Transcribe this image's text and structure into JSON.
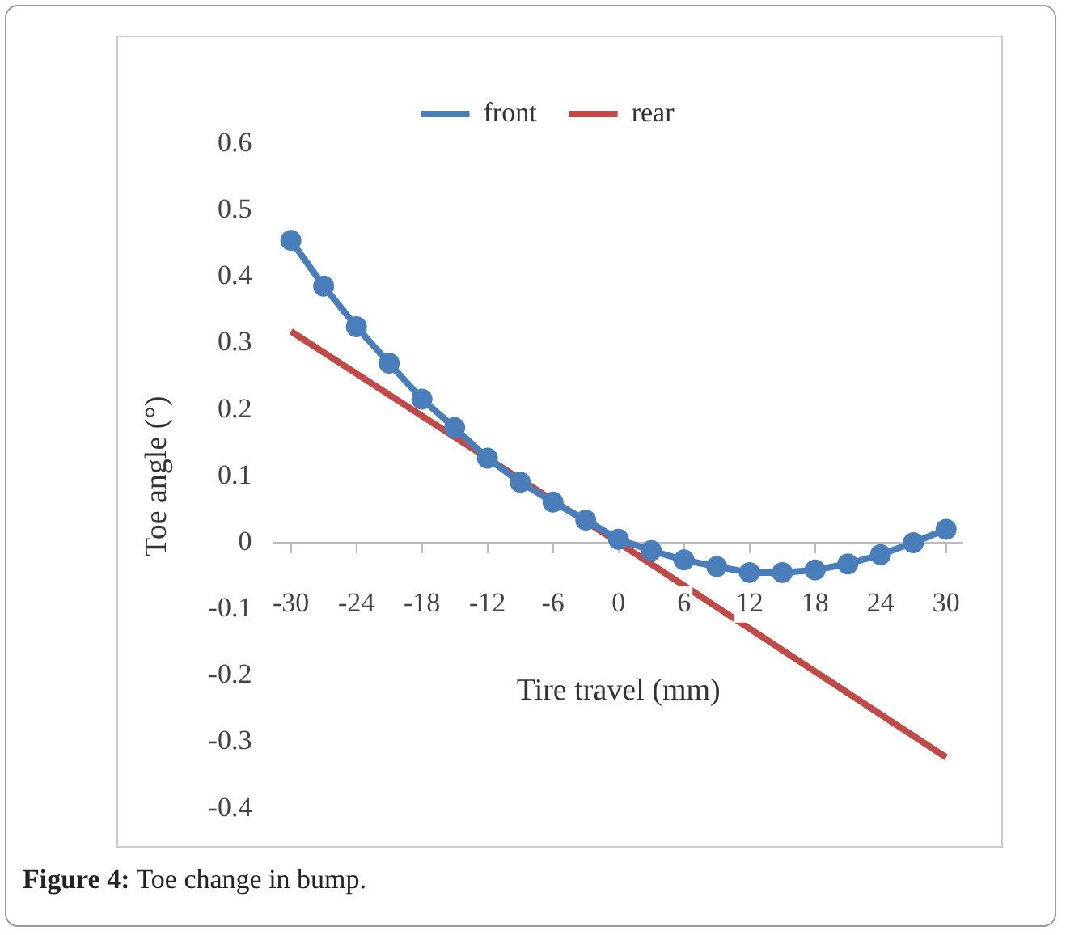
{
  "chart_data": {
    "type": "line",
    "xlabel": "Tire travel (mm)",
    "ylabel": "Toe angle (°)",
    "x": [
      -30,
      -27,
      -24,
      -21,
      -18,
      -15,
      -12,
      -9,
      -6,
      -3,
      0,
      3,
      6,
      9,
      12,
      15,
      18,
      21,
      24,
      27,
      30
    ],
    "series": [
      {
        "name": "front",
        "color": "#4a7ebb",
        "marker": "circle",
        "values": [
          0.455,
          0.386,
          0.325,
          0.27,
          0.216,
          0.173,
          0.127,
          0.091,
          0.061,
          0.034,
          0.005,
          -0.012,
          -0.026,
          -0.036,
          -0.045,
          -0.045,
          -0.041,
          -0.032,
          -0.018,
          0,
          0.02
        ]
      },
      {
        "name": "rear",
        "color": "#be4b48",
        "marker": "none",
        "x": [
          -30,
          0,
          30
        ],
        "values": [
          0.318,
          0,
          -0.323
        ]
      }
    ],
    "xlim": [
      -31.5,
      31.5
    ],
    "xticks": [
      -30,
      -24,
      -18,
      -12,
      -6,
      0,
      6,
      12,
      18,
      24,
      30
    ],
    "ylim": [
      -0.4,
      0.6
    ],
    "yticks": [
      -0.4,
      -0.3,
      -0.2,
      -0.1,
      0,
      0.1,
      0.2,
      0.3,
      0.4,
      0.5,
      0.6
    ],
    "grid": false,
    "legend": "top",
    "annotations": [
      "Figure 4: Toe change in bump."
    ]
  }
}
